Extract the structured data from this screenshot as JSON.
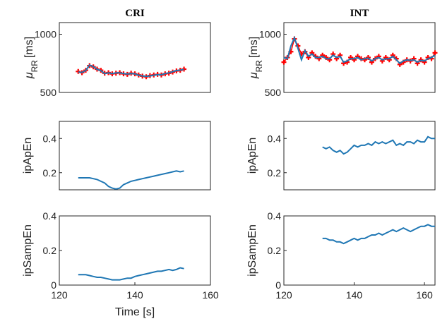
{
  "chart_data": [
    {
      "type": "line",
      "title": "CRI",
      "ylabel": "μRR [ms]",
      "xlim": [
        120,
        160
      ],
      "ylim": [
        500,
        1100
      ],
      "yticks": [
        500,
        1000
      ],
      "xticks": [],
      "series": [
        {
          "color": "#ff0000",
          "marker": "plus",
          "x": [
            125,
            126,
            127,
            128,
            129,
            130,
            131,
            132,
            133,
            134,
            135,
            136,
            137,
            138,
            139,
            140,
            141,
            142,
            143,
            144,
            145,
            146,
            147,
            148,
            149,
            150,
            151,
            152,
            153
          ],
          "y": [
            680,
            670,
            690,
            730,
            720,
            700,
            690,
            665,
            670,
            660,
            665,
            670,
            660,
            655,
            665,
            660,
            650,
            640,
            635,
            645,
            650,
            655,
            650,
            660,
            665,
            675,
            685,
            690,
            700
          ]
        },
        {
          "color": "#1f77b4",
          "marker": "none",
          "x": [
            125,
            126,
            127,
            128,
            129,
            130,
            131,
            132,
            133,
            134,
            135,
            136,
            137,
            138,
            139,
            140,
            141,
            142,
            143,
            144,
            145,
            146,
            147,
            148,
            149,
            150,
            151,
            152,
            153
          ],
          "y": [
            675,
            672,
            688,
            735,
            722,
            698,
            688,
            662,
            668,
            662,
            668,
            668,
            662,
            658,
            662,
            660,
            648,
            642,
            638,
            642,
            648,
            652,
            652,
            662,
            668,
            678,
            688,
            692,
            698
          ]
        }
      ]
    },
    {
      "type": "line",
      "title": "INT",
      "ylabel": "μRR [ms]",
      "xlim": [
        120,
        163
      ],
      "ylim": [
        500,
        1100
      ],
      "yticks": [
        500,
        1000
      ],
      "xticks": [],
      "series": [
        {
          "color": "#ff0000",
          "marker": "plus",
          "x": [
            120,
            121,
            122,
            123,
            124,
            125,
            126,
            127,
            128,
            129,
            130,
            131,
            132,
            133,
            134,
            135,
            136,
            137,
            138,
            139,
            140,
            141,
            142,
            143,
            144,
            145,
            146,
            147,
            148,
            149,
            150,
            151,
            152,
            153,
            154,
            155,
            156,
            157,
            158,
            159,
            160,
            161,
            162,
            163
          ],
          "y": [
            760,
            800,
            850,
            960,
            900,
            830,
            850,
            800,
            840,
            810,
            790,
            820,
            800,
            780,
            830,
            790,
            820,
            750,
            760,
            800,
            780,
            810,
            790,
            780,
            800,
            760,
            790,
            810,
            770,
            800,
            780,
            820,
            790,
            740,
            760,
            780,
            770,
            790,
            750,
            780,
            760,
            800,
            790,
            840
          ]
        },
        {
          "color": "#1f77b4",
          "marker": "none",
          "x": [
            120,
            121,
            122,
            123,
            124,
            125,
            126,
            127,
            128,
            129,
            130,
            131,
            132,
            133,
            134,
            135,
            136,
            137,
            138,
            139,
            140,
            141,
            142,
            143,
            144,
            145,
            146,
            147,
            148,
            149,
            150,
            151,
            152,
            153,
            154,
            155,
            156,
            157,
            158,
            159,
            160,
            161,
            162,
            163
          ],
          "y": [
            800,
            790,
            900,
            970,
            880,
            780,
            860,
            810,
            830,
            800,
            800,
            810,
            790,
            790,
            820,
            800,
            810,
            760,
            770,
            790,
            790,
            800,
            780,
            790,
            795,
            770,
            790,
            800,
            780,
            790,
            790,
            810,
            780,
            750,
            770,
            780,
            775,
            780,
            760,
            775,
            770,
            790,
            800,
            820
          ]
        }
      ]
    },
    {
      "type": "line",
      "title": "",
      "ylabel": "ipApEn",
      "xlim": [
        120,
        160
      ],
      "ylim": [
        0.1,
        0.5
      ],
      "yticks": [
        0.2,
        0.4
      ],
      "xticks": [],
      "series": [
        {
          "color": "#1f77b4",
          "marker": "none",
          "x": [
            125,
            126,
            127,
            128,
            129,
            130,
            131,
            132,
            133,
            134,
            135,
            136,
            137,
            138,
            139,
            140,
            141,
            142,
            143,
            144,
            145,
            146,
            147,
            148,
            149,
            150,
            151,
            152,
            153
          ],
          "y": [
            0.17,
            0.17,
            0.17,
            0.17,
            0.165,
            0.16,
            0.15,
            0.14,
            0.12,
            0.11,
            0.105,
            0.11,
            0.13,
            0.14,
            0.15,
            0.155,
            0.16,
            0.165,
            0.17,
            0.175,
            0.18,
            0.185,
            0.19,
            0.195,
            0.2,
            0.205,
            0.21,
            0.205,
            0.21
          ]
        }
      ]
    },
    {
      "type": "line",
      "title": "",
      "ylabel": "ipApEn",
      "xlim": [
        120,
        163
      ],
      "ylim": [
        0.1,
        0.5
      ],
      "yticks": [
        0.2,
        0.4
      ],
      "xticks": [],
      "series": [
        {
          "color": "#1f77b4",
          "marker": "none",
          "x": [
            131,
            132,
            133,
            134,
            135,
            136,
            137,
            138,
            139,
            140,
            141,
            142,
            143,
            144,
            145,
            146,
            147,
            148,
            149,
            150,
            151,
            152,
            153,
            154,
            155,
            156,
            157,
            158,
            159,
            160,
            161,
            162,
            163
          ],
          "y": [
            0.35,
            0.34,
            0.35,
            0.33,
            0.32,
            0.33,
            0.31,
            0.32,
            0.34,
            0.36,
            0.35,
            0.36,
            0.36,
            0.37,
            0.36,
            0.38,
            0.37,
            0.38,
            0.37,
            0.38,
            0.39,
            0.36,
            0.37,
            0.36,
            0.38,
            0.38,
            0.37,
            0.39,
            0.38,
            0.38,
            0.41,
            0.4,
            0.4
          ]
        }
      ]
    },
    {
      "type": "line",
      "title": "",
      "ylabel": "ipSampEn",
      "xlabel": "Time [s]",
      "xlim": [
        120,
        160
      ],
      "ylim": [
        0,
        0.4
      ],
      "yticks": [
        0,
        0.2,
        0.4
      ],
      "xticks": [
        120,
        140,
        160
      ],
      "series": [
        {
          "color": "#1f77b4",
          "marker": "none",
          "x": [
            125,
            126,
            127,
            128,
            129,
            130,
            131,
            132,
            133,
            134,
            135,
            136,
            137,
            138,
            139,
            140,
            141,
            142,
            143,
            144,
            145,
            146,
            147,
            148,
            149,
            150,
            151,
            152,
            153
          ],
          "y": [
            0.06,
            0.06,
            0.06,
            0.055,
            0.05,
            0.045,
            0.045,
            0.04,
            0.035,
            0.03,
            0.03,
            0.03,
            0.035,
            0.04,
            0.04,
            0.05,
            0.055,
            0.06,
            0.065,
            0.07,
            0.075,
            0.08,
            0.08,
            0.085,
            0.09,
            0.085,
            0.09,
            0.1,
            0.095
          ]
        }
      ]
    },
    {
      "type": "line",
      "title": "",
      "ylabel": "ipSampEn",
      "xlim": [
        120,
        163
      ],
      "ylim": [
        0,
        0.4
      ],
      "yticks": [
        0,
        0.2,
        0.4
      ],
      "xticks": [
        120,
        140,
        160
      ],
      "series": [
        {
          "color": "#1f77b4",
          "marker": "none",
          "x": [
            131,
            132,
            133,
            134,
            135,
            136,
            137,
            138,
            139,
            140,
            141,
            142,
            143,
            144,
            145,
            146,
            147,
            148,
            149,
            150,
            151,
            152,
            153,
            154,
            155,
            156,
            157,
            158,
            159,
            160,
            161,
            162,
            163
          ],
          "y": [
            0.27,
            0.27,
            0.26,
            0.26,
            0.25,
            0.25,
            0.24,
            0.25,
            0.26,
            0.27,
            0.26,
            0.27,
            0.27,
            0.28,
            0.29,
            0.29,
            0.3,
            0.29,
            0.3,
            0.31,
            0.32,
            0.31,
            0.32,
            0.33,
            0.32,
            0.31,
            0.32,
            0.33,
            0.34,
            0.34,
            0.35,
            0.34,
            0.34
          ]
        }
      ]
    }
  ]
}
